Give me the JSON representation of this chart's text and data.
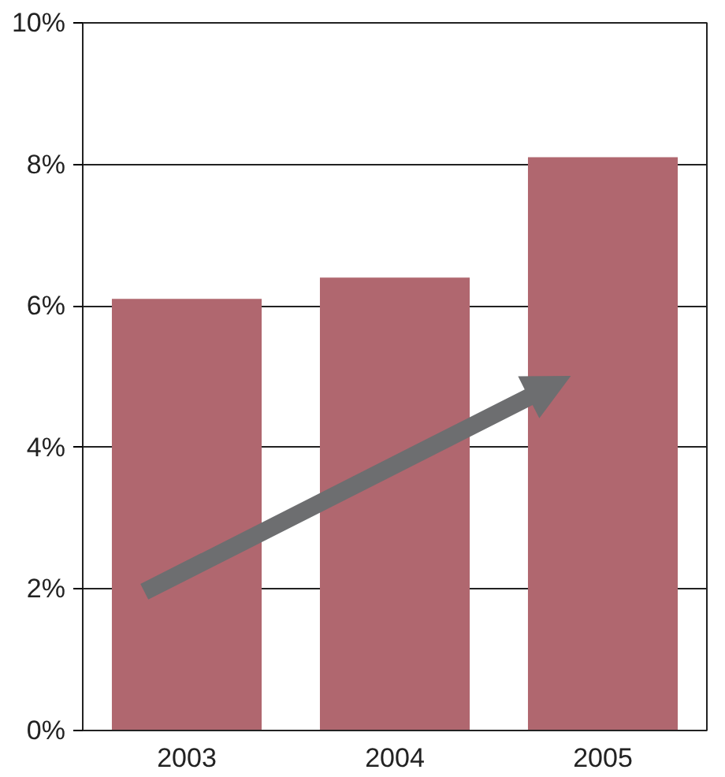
{
  "chart_data": {
    "type": "bar",
    "categories": [
      "2003",
      "2004",
      "2005"
    ],
    "values": [
      6.1,
      6.4,
      8.1
    ],
    "color": "#b0676f",
    "ylim": [
      0,
      10
    ],
    "yticks": [
      {
        "value": 0,
        "label": "0%"
      },
      {
        "value": 2,
        "label": "2%"
      },
      {
        "value": 4,
        "label": "4%"
      },
      {
        "value": 6,
        "label": "6%"
      },
      {
        "value": 8,
        "label": "8%"
      },
      {
        "value": 10,
        "label": "10%"
      }
    ],
    "grid": "y"
  }
}
